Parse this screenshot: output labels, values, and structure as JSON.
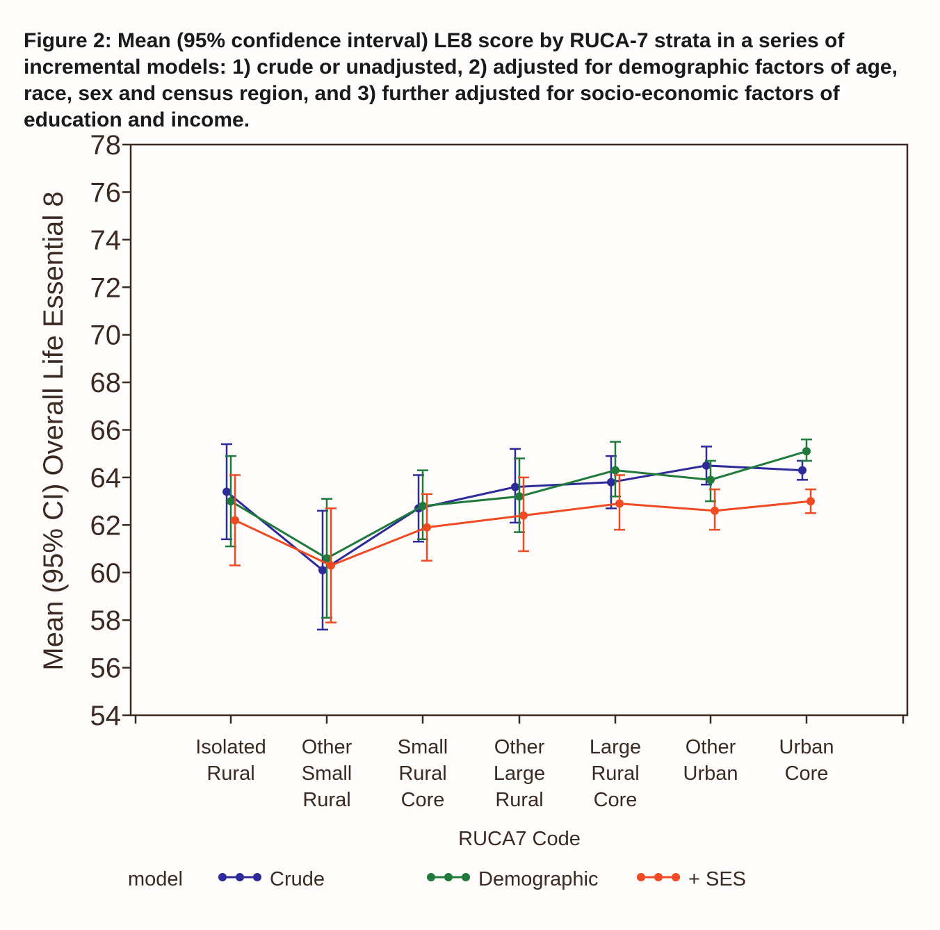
{
  "caption": "Figure 2:  Mean (95% confidence interval) LE8 score by RUCA-7 strata in a series of incremental models: 1) crude or unadjusted, 2) adjusted for demographic factors of age, race, sex and census region, and 3) further adjusted for socio-economic factors of education and income.",
  "chart_data": {
    "type": "line",
    "title": "Figure 2:  Mean (95% confidence interval) LE8 score by RUCA-7 strata in a series of incremental models: 1) crude or unadjusted, 2) adjusted for demographic factors of age, race, sex and census region, and 3) further adjusted for socio-economic factors of education and income.",
    "xlabel": "RUCA7 Code",
    "ylabel": "Mean (95% CI) Overall Life Essential 8",
    "ylim": [
      54,
      78
    ],
    "yticks": [
      54,
      56,
      58,
      60,
      62,
      64,
      66,
      68,
      70,
      72,
      74,
      76,
      78
    ],
    "categories": [
      [
        "Isolated",
        "Rural"
      ],
      [
        "Other",
        "Small",
        "Rural"
      ],
      [
        "Small",
        "Rural",
        "Core"
      ],
      [
        "Other",
        "Large",
        "Rural"
      ],
      [
        "Large",
        "Rural",
        "Core"
      ],
      [
        "Other",
        "Urban"
      ],
      [
        "Urban",
        "Core"
      ]
    ],
    "legend_title": "model",
    "legend_position": "bottom",
    "series": [
      {
        "name": "Crude",
        "color": "#2e2a9a",
        "values": [
          63.4,
          60.1,
          62.7,
          63.6,
          63.8,
          64.5,
          64.3
        ],
        "lower": [
          61.4,
          57.6,
          61.3,
          62.1,
          62.7,
          63.7,
          63.9
        ],
        "upper": [
          65.4,
          62.6,
          64.1,
          65.2,
          64.9,
          65.3,
          64.7
        ]
      },
      {
        "name": "Demographic",
        "color": "#1f7a3c",
        "values": [
          63.0,
          60.6,
          62.8,
          63.2,
          64.3,
          63.9,
          65.1
        ],
        "lower": [
          61.1,
          58.1,
          61.4,
          61.7,
          63.2,
          63.0,
          64.7
        ],
        "upper": [
          64.9,
          63.1,
          64.3,
          64.8,
          65.5,
          64.7,
          65.6
        ]
      },
      {
        "name": "+ SES",
        "color": "#f04a22",
        "values": [
          62.2,
          60.3,
          61.9,
          62.4,
          62.9,
          62.6,
          63.0
        ],
        "lower": [
          60.3,
          57.9,
          60.5,
          60.9,
          61.8,
          61.8,
          62.5
        ],
        "upper": [
          64.1,
          62.7,
          63.3,
          64.0,
          64.1,
          63.5,
          63.5
        ]
      }
    ]
  }
}
